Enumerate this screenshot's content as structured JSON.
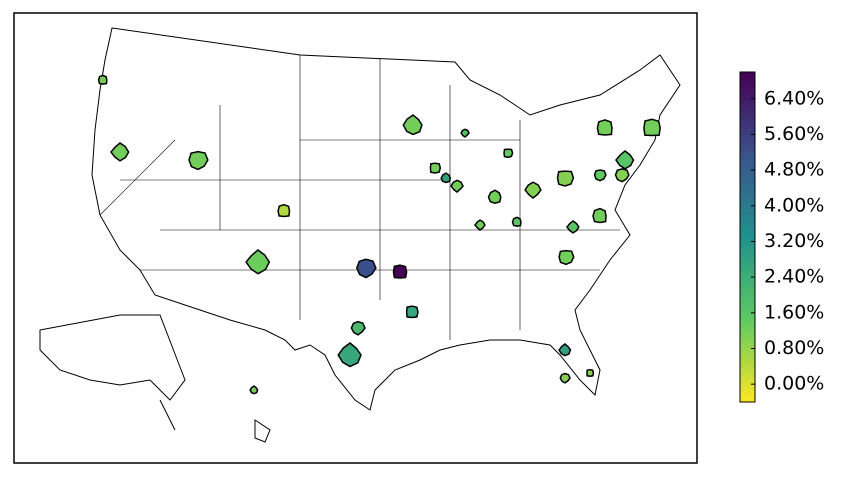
{
  "chart_data": {
    "type": "choropleth",
    "colormap": "viridis_r",
    "values": [
      1.2,
      1.2,
      1.2,
      0.5,
      1.3,
      5.2,
      7.0,
      2.6,
      2.0,
      2.6,
      1.2,
      1.8,
      1.2,
      2.8,
      1.2,
      1.4,
      1.2,
      1.0,
      1.0,
      1.6,
      1.2,
      1.2,
      1.2,
      1.6,
      1.4,
      1.2,
      1.6,
      1.0,
      1.2,
      2.8,
      1.0,
      1.0,
      1.2
    ],
    "clim": [
      -0.4,
      7.0
    ],
    "cticks": [
      {
        "value": 0,
        "label": "0.00%"
      },
      {
        "value": 0.8,
        "label": "0.80%"
      },
      {
        "value": 1.6,
        "label": "1.60%"
      },
      {
        "value": 2.4,
        "label": "2.40%"
      },
      {
        "value": 3.2,
        "label": "3.20%"
      },
      {
        "value": 4.0,
        "label": "4.00%"
      },
      {
        "value": 4.8,
        "label": "4.80%"
      },
      {
        "value": 5.6,
        "label": "5.60%"
      },
      {
        "value": 6.4,
        "label": "6.40%"
      }
    ]
  }
}
